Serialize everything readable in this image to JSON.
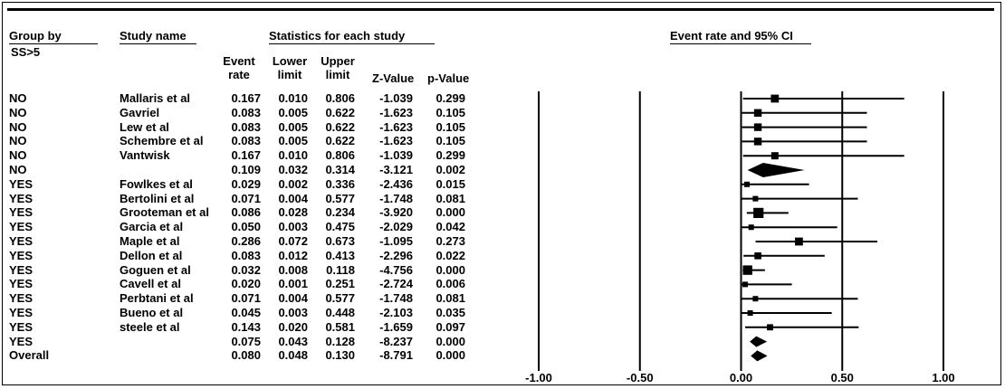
{
  "headers": {
    "group_by": "Group by",
    "group_sub": "SS>5",
    "study_name": "Study name",
    "stats_title": "Statistics for each study",
    "event_rate": [
      "Event",
      "rate"
    ],
    "lower_limit": [
      "Lower",
      "limit"
    ],
    "upper_limit": [
      "Upper",
      "limit"
    ],
    "z_value": "Z-Value",
    "p_value": "p-Value",
    "plot_title": "Event rate and 95% CI"
  },
  "chart_data": {
    "type": "forest",
    "title": "Event rate and 95% CI",
    "xlim": [
      -1.0,
      1.0
    ],
    "x_ticks": [
      "-1.00",
      "-0.50",
      "0.00",
      "0.50",
      "1.00"
    ],
    "rows": [
      {
        "group": "NO",
        "study": "Mallaris et al",
        "rate": "0.167",
        "lower": "0.010",
        "upper": "0.806",
        "z": "-1.039",
        "p": "0.299",
        "kind": "study",
        "weight": 0.6
      },
      {
        "group": "NO",
        "study": "Gavriel",
        "rate": "0.083",
        "lower": "0.005",
        "upper": "0.622",
        "z": "-1.623",
        "p": "0.105",
        "kind": "study",
        "weight": 0.55
      },
      {
        "group": "NO",
        "study": "Lew et al",
        "rate": "0.083",
        "lower": "0.005",
        "upper": "0.622",
        "z": "-1.623",
        "p": "0.105",
        "kind": "study",
        "weight": 0.55
      },
      {
        "group": "NO",
        "study": "Schembre et al",
        "rate": "0.083",
        "lower": "0.005",
        "upper": "0.622",
        "z": "-1.623",
        "p": "0.105",
        "kind": "study",
        "weight": 0.55
      },
      {
        "group": "NO",
        "study": "Vantwisk",
        "rate": "0.167",
        "lower": "0.010",
        "upper": "0.806",
        "z": "-1.039",
        "p": "0.299",
        "kind": "study",
        "weight": 0.5
      },
      {
        "group": "NO",
        "study": "",
        "rate": "0.109",
        "lower": "0.032",
        "upper": "0.314",
        "z": "-3.121",
        "p": "0.002",
        "kind": "summary",
        "weight": 0
      },
      {
        "group": "YES",
        "study": "Fowlkes et al",
        "rate": "0.029",
        "lower": "0.002",
        "upper": "0.336",
        "z": "-2.436",
        "p": "0.015",
        "kind": "study",
        "weight": 0.25
      },
      {
        "group": "YES",
        "study": "Bertolini et al",
        "rate": "0.071",
        "lower": "0.004",
        "upper": "0.577",
        "z": "-1.748",
        "p": "0.081",
        "kind": "study",
        "weight": 0.25
      },
      {
        "group": "YES",
        "study": "Grooteman et al",
        "rate": "0.086",
        "lower": "0.028",
        "upper": "0.234",
        "z": "-3.920",
        "p": "0.000",
        "kind": "study",
        "weight": 0.9
      },
      {
        "group": "YES",
        "study": "Garcia et al",
        "rate": "0.050",
        "lower": "0.003",
        "upper": "0.475",
        "z": "-2.029",
        "p": "0.042",
        "kind": "study",
        "weight": 0.25
      },
      {
        "group": "YES",
        "study": "Maple et al",
        "rate": "0.286",
        "lower": "0.072",
        "upper": "0.673",
        "z": "-1.095",
        "p": "0.273",
        "kind": "study",
        "weight": 0.6
      },
      {
        "group": "YES",
        "study": "Dellon et al",
        "rate": "0.083",
        "lower": "0.012",
        "upper": "0.413",
        "z": "-2.296",
        "p": "0.022",
        "kind": "study",
        "weight": 0.45
      },
      {
        "group": "YES",
        "study": "Goguen et al",
        "rate": "0.032",
        "lower": "0.008",
        "upper": "0.118",
        "z": "-4.756",
        "p": "0.000",
        "kind": "study",
        "weight": 0.8
      },
      {
        "group": "YES",
        "study": "Cavell et al",
        "rate": "0.020",
        "lower": "0.001",
        "upper": "0.251",
        "z": "-2.724",
        "p": "0.006",
        "kind": "study",
        "weight": 0.25
      },
      {
        "group": "YES",
        "study": "Perbtani et al",
        "rate": "0.071",
        "lower": "0.004",
        "upper": "0.577",
        "z": "-1.748",
        "p": "0.081",
        "kind": "study",
        "weight": 0.25
      },
      {
        "group": "YES",
        "study": "Bueno et al",
        "rate": "0.045",
        "lower": "0.003",
        "upper": "0.448",
        "z": "-2.103",
        "p": "0.035",
        "kind": "study",
        "weight": 0.25
      },
      {
        "group": "YES",
        "study": "steele et al",
        "rate": "0.143",
        "lower": "0.020",
        "upper": "0.581",
        "z": "-1.659",
        "p": "0.097",
        "kind": "study",
        "weight": 0.35
      },
      {
        "group": "YES",
        "study": "",
        "rate": "0.075",
        "lower": "0.043",
        "upper": "0.128",
        "z": "-8.237",
        "p": "0.000",
        "kind": "summary",
        "weight": 0
      },
      {
        "group": "Overall",
        "study": "",
        "rate": "0.080",
        "lower": "0.048",
        "upper": "0.130",
        "z": "-8.791",
        "p": "0.000",
        "kind": "summary",
        "weight": 0
      }
    ]
  }
}
